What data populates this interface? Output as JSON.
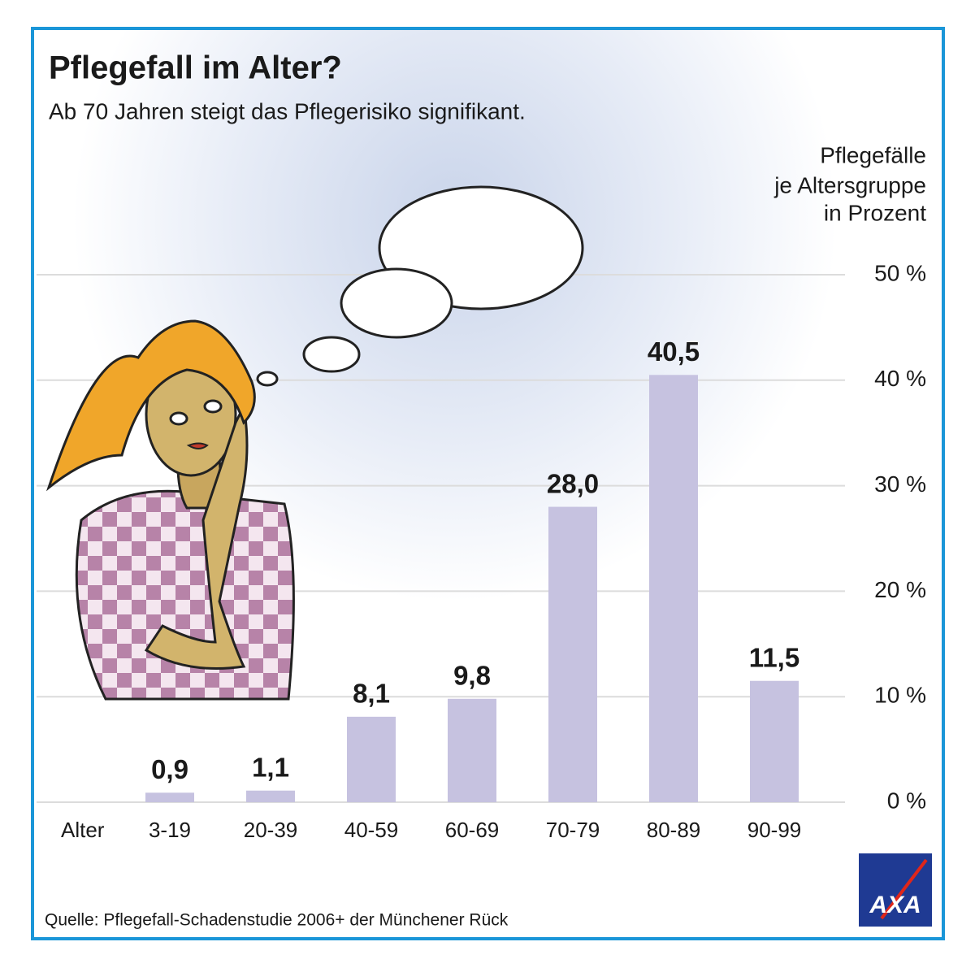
{
  "chart_data": {
    "type": "bar",
    "title": "Pflegefall im Alter?",
    "subtitle": "Ab 70 Jahren steigt das Pflegerisiko signifikant.",
    "y_label": [
      "Pflegefälle",
      "je Altersgruppe",
      "in Prozent"
    ],
    "x_label": "Alter",
    "categories": [
      "3-19",
      "20-39",
      "40-59",
      "60-69",
      "70-79",
      "80-89",
      "90-99"
    ],
    "values": [
      0.9,
      1.1,
      8.1,
      9.8,
      28.0,
      40.5,
      11.5
    ],
    "value_labels": [
      "0,9",
      "1,1",
      "8,1",
      "9,8",
      "28,0",
      "40,5",
      "11,5"
    ],
    "color": "#c6c2e0",
    "ylim": [
      0,
      50
    ],
    "yticks": [
      {
        "value": 0,
        "label": "0 %"
      },
      {
        "value": 10,
        "label": "10 %"
      },
      {
        "value": 20,
        "label": "20 %"
      },
      {
        "value": 30,
        "label": "30 %"
      },
      {
        "value": 40,
        "label": "40 %"
      },
      {
        "value": 50,
        "label": "50 %"
      }
    ],
    "grid": true,
    "source": "Quelle: Pflegefall-Schadenstudie 2006+ der Münchener Rück",
    "logo": "AXA"
  }
}
